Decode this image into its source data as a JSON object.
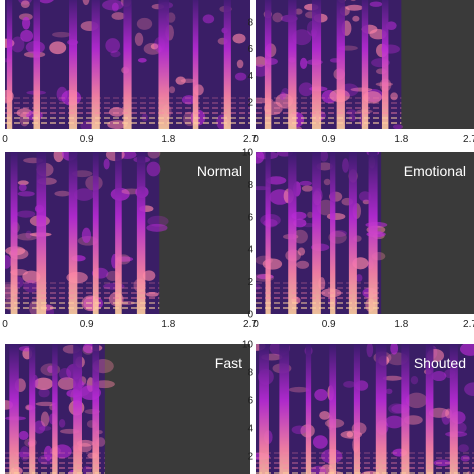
{
  "chart_data": {
    "type": "heatmap",
    "description_free": true,
    "colors": {
      "background": "#3a3a3a",
      "low": "#3b1a6e",
      "mid": "#b92ad6",
      "high": "#ff86a8",
      "peak": "#ffd0a0"
    },
    "panels": [
      {
        "label": "",
        "xlim": [
          0,
          2.7
        ],
        "ylim": [
          0,
          10
        ],
        "x_ticks": [
          "0",
          "0.9",
          "1.8",
          "2.7"
        ],
        "y_ticks": [],
        "speech_end": 2.7,
        "bursts": [
          0.05,
          0.35,
          0.75,
          1.0,
          1.35,
          1.75,
          2.1,
          2.45
        ]
      },
      {
        "label": "",
        "xlim": [
          0,
          2.7
        ],
        "ylim": [
          0,
          10
        ],
        "x_ticks": [
          "0",
          "0.9",
          "1.8",
          "2.7"
        ],
        "y_ticks": [
          "2",
          "4",
          "6",
          "8"
        ],
        "speech_end": 1.8,
        "bursts": [
          0.15,
          0.45,
          0.75,
          1.05,
          1.35,
          1.6
        ]
      },
      {
        "label": "Normal",
        "xlim": [
          0,
          2.7
        ],
        "ylim": [
          0,
          10
        ],
        "x_ticks": [
          "0",
          "0.9",
          "1.8",
          "2.7"
        ],
        "y_ticks": [],
        "speech_end": 1.7,
        "bursts": [
          0.1,
          0.4,
          0.75,
          1.0,
          1.25,
          1.5
        ]
      },
      {
        "label": "Emotional",
        "xlim": [
          0,
          2.7
        ],
        "ylim": [
          0,
          10
        ],
        "x_ticks": [
          "0",
          "0.9",
          "1.8",
          "2.7"
        ],
        "y_ticks": [
          "0",
          "2",
          "4",
          "6",
          "8",
          "10"
        ],
        "speech_end": 1.55,
        "bursts": [
          0.15,
          0.45,
          0.75,
          0.95,
          1.2,
          1.45
        ]
      },
      {
        "label": "Fast",
        "xlim": [
          0,
          2.7
        ],
        "ylim": [
          0,
          10
        ],
        "x_ticks": [],
        "y_ticks": [],
        "speech_end": 1.1,
        "bursts": [
          0.1,
          0.3,
          0.55,
          0.8,
          1.0
        ]
      },
      {
        "label": "Shouted",
        "xlim": [
          0,
          2.7
        ],
        "ylim": [
          0,
          10
        ],
        "x_ticks": [],
        "y_ticks": [
          "2",
          "4",
          "6",
          "8",
          "10"
        ],
        "speech_end": 2.7,
        "bursts": [
          0.1,
          0.35,
          0.65,
          0.95,
          1.25,
          1.55,
          1.85,
          2.15,
          2.45
        ]
      }
    ]
  }
}
